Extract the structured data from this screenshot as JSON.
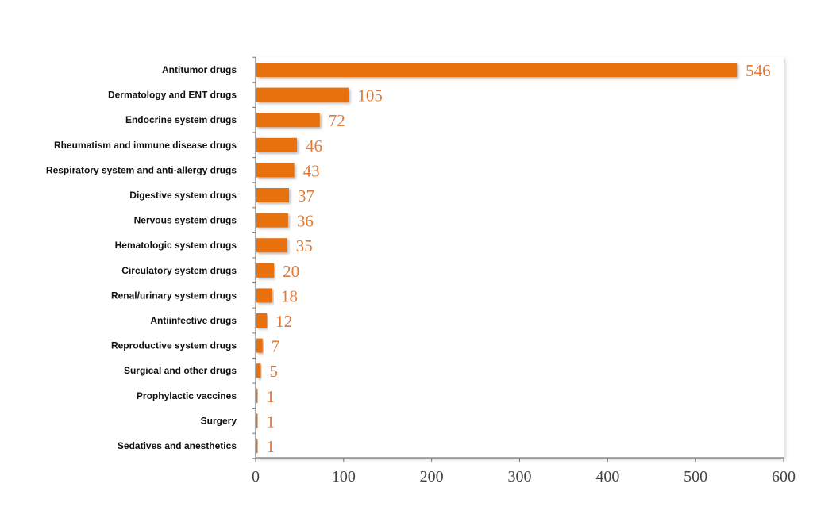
{
  "chart_data": {
    "type": "bar",
    "orientation": "horizontal",
    "title": "",
    "xlabel": "",
    "ylabel": "",
    "categories": [
      "Antitumor drugs",
      "Dermatology and ENT drugs",
      "Endocrine system drugs",
      "Rheumatism and immune disease drugs",
      "Respiratory system and anti-allergy drugs",
      "Digestive system drugs",
      "Nervous system drugs",
      "Hematologic system drugs",
      "Circulatory system drugs",
      "Renal/urinary system drugs",
      "Antiinfective drugs",
      "Reproductive system drugs",
      "Surgical and other drugs",
      "Prophylactic vaccines",
      "Surgery",
      "Sedatives and anesthetics"
    ],
    "values": [
      546,
      105,
      72,
      46,
      43,
      37,
      36,
      35,
      20,
      18,
      12,
      7,
      5,
      1,
      1,
      1
    ],
    "value_labels": [
      "546",
      "105",
      "72",
      "46",
      "43",
      "37",
      "36",
      "35",
      "20",
      "18",
      "12",
      "7",
      "5",
      "1",
      "1",
      "1"
    ],
    "xlim": [
      0,
      600
    ],
    "xticks": [
      0,
      100,
      200,
      300,
      400,
      500,
      600
    ],
    "xtick_labels": [
      "0",
      "100",
      "200",
      "300",
      "400",
      "500",
      "600"
    ],
    "grid": false,
    "legend": "none",
    "colors": {
      "bar": "#E8700F",
      "value_label": "#E07A35",
      "axis": "#777777"
    }
  }
}
